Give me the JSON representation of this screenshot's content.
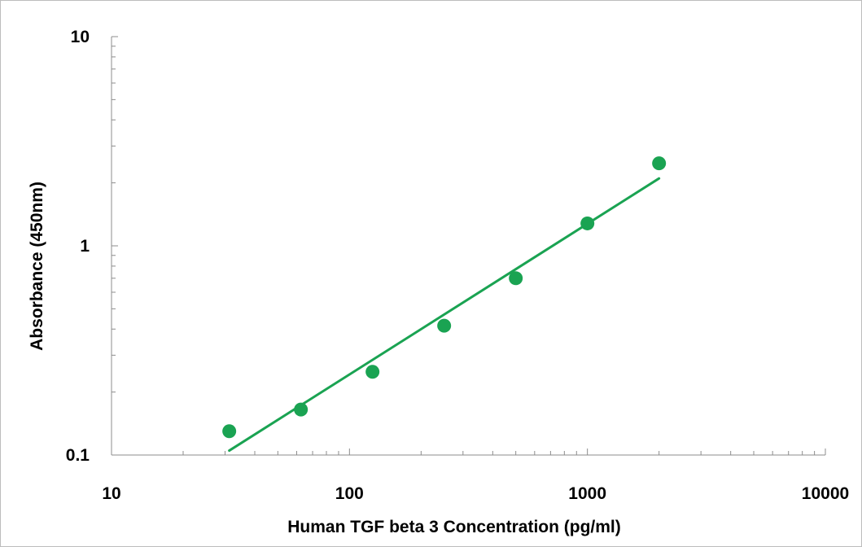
{
  "chart_data": {
    "type": "scatter",
    "title": "",
    "xlabel": "Human TGF beta 3 Concentration (pg/ml)",
    "ylabel": "Absorbance (450nm)",
    "xscale": "log",
    "yscale": "log",
    "xlim": [
      10,
      10000
    ],
    "ylim": [
      0.1,
      10
    ],
    "x_ticks": [
      "10",
      "100",
      "1000",
      "10000"
    ],
    "y_ticks": [
      "0.1",
      "1",
      "10"
    ],
    "grid": false,
    "legend": "none",
    "series": [
      {
        "type": "scatter",
        "x": [
          31.25,
          62.5,
          125,
          250,
          500,
          1000,
          2000
        ],
        "y": [
          0.13,
          0.165,
          0.25,
          0.415,
          0.7,
          1.28,
          2.48
        ],
        "color": "#1aa352"
      }
    ],
    "trendline": {
      "type": "power",
      "x": [
        31.25,
        2000
      ],
      "y": [
        0.105,
        2.1
      ],
      "color": "#1aa352"
    }
  }
}
